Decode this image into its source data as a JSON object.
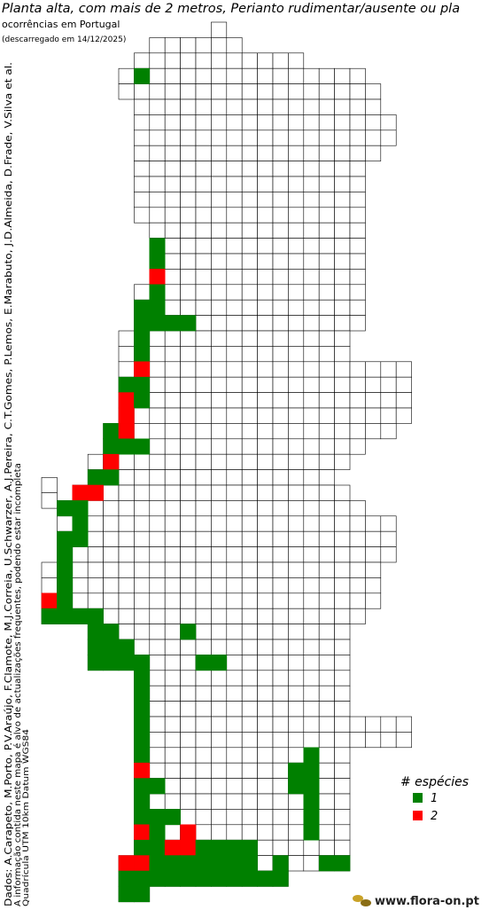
{
  "title": "Planta alta, com mais de 2 metros, Perianto rudimentar/ausente ou pla",
  "subtitle": "ocorrências em Portugal",
  "downloaded": "(descarregado em 14/12/2025)",
  "credits": "Dados: A.Carapeto, M.Porto, P.V.Araújo, F.Clamote, M.J.Correia, U.Schwarzer, A.J.Pereira, C.T.Gomes, P.Lemos, E.Marabuto, J.D.Almeida, D.Frade, V.Silva et al.",
  "disclaimer": "A informação contida neste mapa é alvo de actualizações frequentes, podendo estar incompleta",
  "grid_note": "Quadrícula UTM 10km Datum WGS84",
  "legend": {
    "title": "# espécies",
    "items": [
      {
        "label": "1",
        "value": 1,
        "color": "#008000"
      },
      {
        "label": "2",
        "value": 2,
        "color": "#ff0000"
      }
    ]
  },
  "website": "www.flora-on.pt",
  "occurrences": [
    1,
    1,
    1,
    2,
    1,
    1,
    1,
    1,
    1,
    1,
    1,
    1,
    1,
    2,
    1,
    1,
    2,
    1,
    2,
    1,
    2,
    1,
    1,
    1,
    2,
    1,
    1,
    2,
    2,
    1,
    1,
    1,
    1,
    1,
    1,
    1,
    1,
    2,
    1,
    1,
    1,
    1,
    1,
    1,
    1,
    1,
    1,
    1,
    1,
    1,
    1,
    1,
    1,
    1,
    1,
    1,
    1,
    1,
    1,
    1,
    1,
    1,
    2,
    1,
    1,
    1,
    1,
    1,
    1,
    1,
    1,
    1,
    1,
    1,
    1,
    2,
    1,
    2,
    1,
    1,
    1,
    2,
    2,
    1,
    1,
    1,
    1,
    2,
    2,
    1,
    1,
    1,
    1,
    1,
    1,
    1,
    1,
    1,
    1,
    1,
    1,
    1,
    1,
    1,
    1,
    1,
    1,
    1,
    1,
    1,
    1,
    1
  ]
}
